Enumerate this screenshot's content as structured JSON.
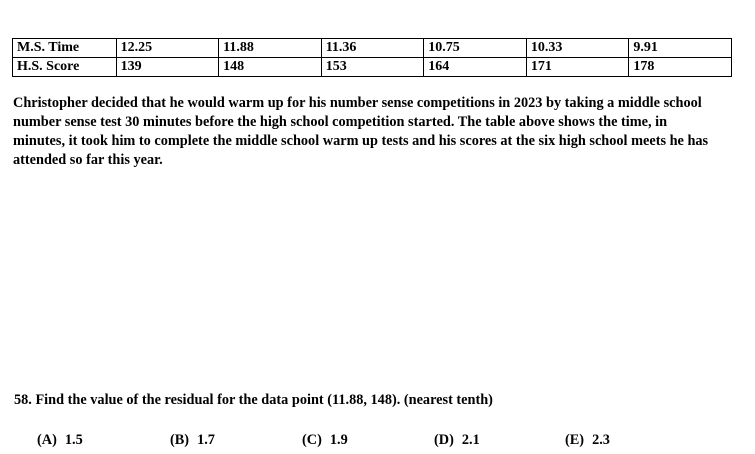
{
  "table": {
    "rows": [
      {
        "label": "M.S. Time",
        "values": [
          "12.25",
          "11.88",
          "11.36",
          "10.75",
          "10.33",
          "9.91"
        ]
      },
      {
        "label": "H.S. Score",
        "values": [
          "139",
          "148",
          "153",
          "164",
          "171",
          "178"
        ]
      }
    ]
  },
  "passage": "Christopher decided that he would warm up for his number sense competitions in 2023 by taking a middle school number sense test 30 minutes before the high school competition started.  The table above shows the time, in minutes, it took him to complete the middle school warm up tests and his scores at the six high school meets he has attended so far this year.",
  "question": {
    "number": "58.",
    "text": "Find the value of the residual for the data point (11.88, 148).  (nearest tenth)"
  },
  "choices": [
    {
      "letter": "(A)",
      "value": "1.5"
    },
    {
      "letter": "(B)",
      "value": "1.7"
    },
    {
      "letter": "(C)",
      "value": "1.9"
    },
    {
      "letter": "(D)",
      "value": "2.1"
    },
    {
      "letter": "(E)",
      "value": "2.3"
    }
  ]
}
